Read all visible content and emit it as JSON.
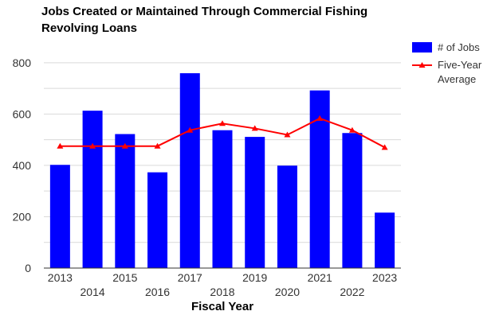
{
  "chart_data": {
    "type": "bar",
    "title_lines": [
      "Jobs Created or Maintained Through Commercial Fishing",
      "Revolving Loans"
    ],
    "xlabel": "Fiscal Year",
    "ylabel": "",
    "categories": [
      "2013",
      "2014",
      "2015",
      "2016",
      "2017",
      "2018",
      "2019",
      "2020",
      "2021",
      "2022",
      "2023"
    ],
    "ylim": [
      0,
      880
    ],
    "yticks": [
      0,
      200,
      400,
      600,
      800
    ],
    "grid": true,
    "legend_position": "right",
    "series": [
      {
        "name": "# of Jobs",
        "type": "bar",
        "color": "#0000ff",
        "values": [
          402,
          613,
          522,
          373,
          759,
          537,
          511,
          399,
          692,
          526,
          216
        ]
      },
      {
        "name": "Five-Year Average",
        "legend_lines": [
          "Five-Year",
          "Average"
        ],
        "type": "line",
        "color": "#ff0000",
        "values": [
          475,
          475,
          475,
          475,
          537,
          563,
          544,
          519,
          583,
          537,
          470
        ]
      }
    ]
  }
}
